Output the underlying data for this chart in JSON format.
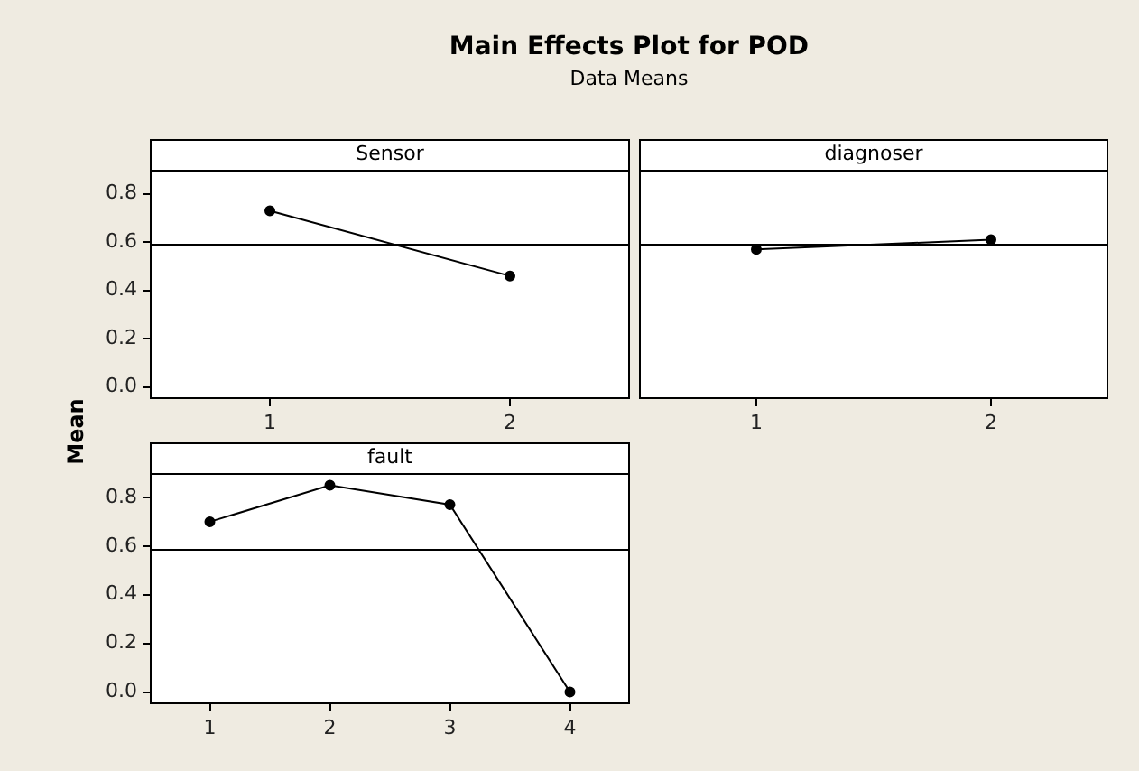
{
  "chart_data": [
    {
      "type": "line",
      "title": "Main Effects Plot for POD",
      "subtitle": "Data Means",
      "ylabel": "Mean",
      "xlabel": "Sensor",
      "x": [
        1,
        2
      ],
      "series": [
        {
          "color": "#000000",
          "values": [
            0.73,
            0.46
          ]
        }
      ],
      "xlim": [
        0.5,
        2.5
      ],
      "xticks": [
        1,
        2
      ],
      "ylim": [
        -0.05,
        0.9
      ],
      "yticks": [
        {
          "value": 0,
          "label": "0.0"
        },
        0.2,
        0.4,
        0.6,
        0.8
      ],
      "ref_lines": [
        {
          "axis": "y",
          "value": 0.59
        }
      ],
      "marker": "circle"
    },
    {
      "type": "line",
      "xlabel": "diagnoser",
      "x": [
        1,
        2
      ],
      "series": [
        {
          "color": "#000000",
          "values": [
            0.57,
            0.61
          ]
        }
      ],
      "xlim": [
        0.5,
        2.5
      ],
      "xticks": [
        1,
        2
      ],
      "ylim": [
        -0.05,
        0.9
      ],
      "ref_lines": [
        {
          "axis": "y",
          "value": 0.59
        }
      ],
      "marker": "circle",
      "tick_labels": "x"
    },
    {
      "type": "line",
      "xlabel": "fault",
      "x": [
        1,
        2,
        3,
        4
      ],
      "series": [
        {
          "color": "#000000",
          "values": [
            0.7,
            0.85,
            0.77,
            0.0
          ]
        }
      ],
      "xlim": [
        0.5,
        4.5
      ],
      "xticks": [
        1,
        2,
        3,
        4
      ],
      "ylim": [
        -0.05,
        0.9
      ],
      "yticks": [
        {
          "value": 0,
          "label": "0.0"
        },
        0.2,
        0.4,
        0.6,
        0.8
      ],
      "ref_lines": [
        {
          "axis": "y",
          "value": 0.59
        }
      ],
      "marker": "circle"
    }
  ]
}
